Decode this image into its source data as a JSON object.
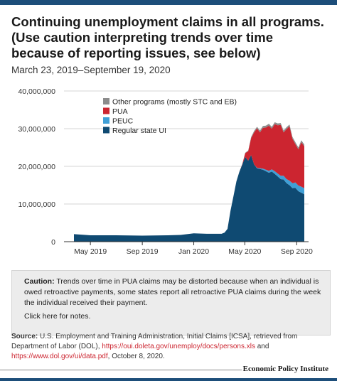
{
  "header": {
    "title": "Continuing unemployment claims in all programs. (Use caution interpreting trends over time because of reporting issues, see below)",
    "subtitle": "March 23, 2019–September 19, 2020"
  },
  "colors": {
    "accent_bar": "#1d4e7a",
    "regular": "#0f4a72",
    "peuc": "#3f9fd6",
    "pua": "#cc2530",
    "other": "#8c8c8c"
  },
  "chart_data": {
    "type": "area",
    "stacked": true,
    "x_start": "2019-03-23",
    "x_end": "2020-09-19",
    "x_ticks": [
      {
        "date": "2019-05-01",
        "label": "May 2019"
      },
      {
        "date": "2019-09-01",
        "label": "Sep 2019"
      },
      {
        "date": "2020-01-01",
        "label": "Jan 2020"
      },
      {
        "date": "2020-05-01",
        "label": "May 2020"
      },
      {
        "date": "2020-09-01",
        "label": "Sep 2020"
      }
    ],
    "y_ticks": [
      {
        "value": 0,
        "label": "0"
      },
      {
        "value": 10000000,
        "label": "10,000,000"
      },
      {
        "value": 20000000,
        "label": "20,000,000"
      },
      {
        "value": 30000000,
        "label": "30,000,000"
      },
      {
        "value": 40000000,
        "label": "40,000,000"
      }
    ],
    "ylim": [
      0,
      40000000
    ],
    "grid": true,
    "legend_placement": "top-left",
    "dates": [
      "2019-03-23",
      "2019-05-01",
      "2019-07-01",
      "2019-09-01",
      "2019-11-01",
      "2019-12-01",
      "2020-01-01",
      "2020-02-01",
      "2020-02-29",
      "2020-03-07",
      "2020-03-14",
      "2020-03-21",
      "2020-03-28",
      "2020-04-04",
      "2020-04-11",
      "2020-04-18",
      "2020-04-25",
      "2020-05-02",
      "2020-05-09",
      "2020-05-16",
      "2020-05-23",
      "2020-05-30",
      "2020-06-06",
      "2020-06-13",
      "2020-06-20",
      "2020-06-27",
      "2020-07-04",
      "2020-07-11",
      "2020-07-18",
      "2020-07-25",
      "2020-08-01",
      "2020-08-08",
      "2020-08-15",
      "2020-08-22",
      "2020-08-29",
      "2020-09-05",
      "2020-09-12",
      "2020-09-19"
    ],
    "series": [
      {
        "name": "Regular state UI",
        "color": "#0f4a72",
        "values": [
          2000000,
          1700000,
          1700000,
          1600000,
          1700000,
          1800000,
          2200000,
          2100000,
          2100000,
          2100000,
          2400000,
          3400000,
          8200000,
          12000000,
          16000000,
          18500000,
          20500000,
          22500000,
          21500000,
          23000000,
          20500000,
          19500000,
          19300000,
          19100000,
          18700000,
          18300000,
          18600000,
          18000000,
          17300000,
          16600000,
          16500000,
          15500000,
          15000000,
          14200000,
          14300000,
          13400000,
          13000000,
          12600000
        ]
      },
      {
        "name": "PEUC",
        "color": "#3f9fd6",
        "values": [
          0,
          0,
          0,
          0,
          0,
          0,
          0,
          0,
          0,
          0,
          0,
          0,
          0,
          0,
          0,
          0,
          0,
          0,
          0,
          0,
          0,
          100000,
          200000,
          300000,
          400000,
          500000,
          600000,
          700000,
          800000,
          900000,
          1000000,
          1100000,
          1200000,
          1300000,
          1400000,
          1500000,
          1600000,
          1600000
        ]
      },
      {
        "name": "PUA",
        "color": "#cc2530",
        "values": [
          0,
          0,
          0,
          0,
          0,
          0,
          0,
          0,
          0,
          0,
          0,
          0,
          0,
          0,
          0,
          0,
          100000,
          1000000,
          2500000,
          4500000,
          8500000,
          10500000,
          9500000,
          10800000,
          11200000,
          12000000,
          10800000,
          12500000,
          12800000,
          13500000,
          11500000,
          13300000,
          14400000,
          11800000,
          10200000,
          9600000,
          11800000,
          11100000
        ]
      },
      {
        "name": "Other programs (mostly STC and EB)",
        "color": "#8c8c8c",
        "values": [
          0,
          0,
          0,
          0,
          0,
          0,
          0,
          0,
          0,
          0,
          0,
          0,
          0,
          0,
          0,
          0,
          0,
          100000,
          200000,
          300000,
          400000,
          400000,
          500000,
          500000,
          500000,
          500000,
          500000,
          500000,
          500000,
          500000,
          500000,
          500000,
          500000,
          500000,
          500000,
          500000,
          500000,
          500000
        ]
      }
    ]
  },
  "caution": {
    "label": "Caution:",
    "text": "Trends over time in PUA claims may be distorted because when an individual is owed retroactive payments, some states report all retroactive PUA claims during the week the individual received their payment.",
    "notes_link": "Click here for notes."
  },
  "source": {
    "label": "Source:",
    "text1": "U.S. Employment and Training Administration, Initial Claims [ICSA], retrieved from Department of Labor (DOL),",
    "link1": "https://oui.doleta.gov/unemploy/docs/persons.xls",
    "text2": "and",
    "link2": "https://www.dol.gov/ui/data.pdf",
    "text3": ", October 8, 2020."
  },
  "brand": {
    "name": "Economic Policy Institute"
  }
}
